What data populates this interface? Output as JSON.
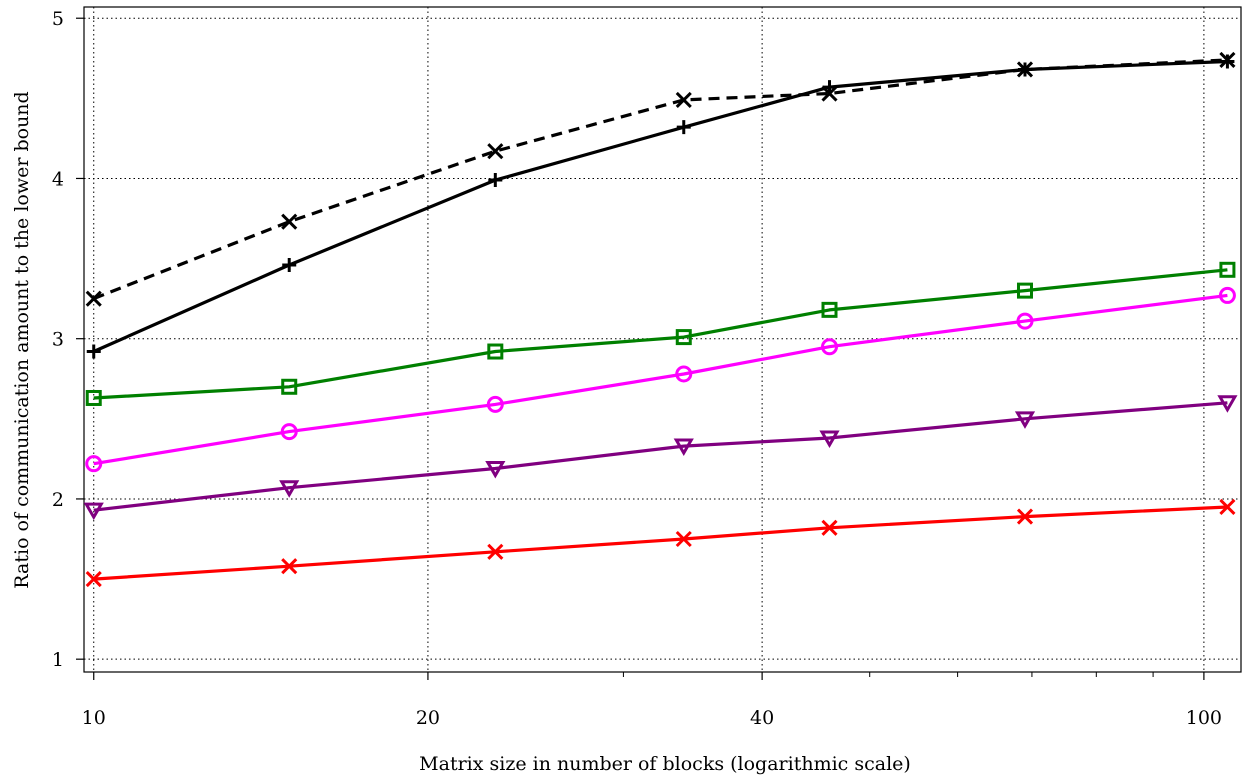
{
  "chart_data": {
    "type": "line",
    "xlabel": "Matrix size in number of blocks (logarithmic scale)",
    "ylabel": "Ratio of communication amount to the lower bound",
    "x_scale": "log",
    "xlim": [
      9.8,
      108
    ],
    "ylim": [
      0.92,
      5.07
    ],
    "x_ticks": [
      10,
      20,
      40,
      100
    ],
    "x_tick_labels": [
      "10",
      "20",
      "40",
      "100"
    ],
    "x_minor_ticks": [
      30,
      50,
      60,
      70,
      80,
      90
    ],
    "y_ticks": [
      1,
      2,
      3,
      4,
      5
    ],
    "y_tick_labels": [
      "1",
      "2",
      "3",
      "4",
      "5"
    ],
    "grid": true,
    "x": [
      10,
      15,
      23,
      34,
      46,
      69,
      105
    ],
    "series": [
      {
        "color": "#000000",
        "marker": "x",
        "dash": true,
        "values": [
          3.25,
          3.73,
          4.17,
          4.49,
          4.53,
          4.68,
          4.74
        ]
      },
      {
        "color": "#000000",
        "marker": "+",
        "dash": false,
        "values": [
          2.92,
          3.46,
          3.99,
          4.32,
          4.57,
          4.68,
          4.73
        ]
      },
      {
        "color": "#008000",
        "marker": "square",
        "dash": false,
        "values": [
          2.63,
          2.7,
          2.92,
          3.01,
          3.18,
          3.3,
          3.43
        ]
      },
      {
        "color": "#ff00ff",
        "marker": "circle",
        "dash": false,
        "values": [
          2.22,
          2.42,
          2.59,
          2.78,
          2.95,
          3.11,
          3.27
        ]
      },
      {
        "color": "#800080",
        "marker": "triangle-down",
        "dash": false,
        "values": [
          1.93,
          2.07,
          2.19,
          2.33,
          2.38,
          2.5,
          2.6
        ]
      },
      {
        "color": "#ff0000",
        "marker": "x",
        "dash": false,
        "values": [
          1.5,
          1.58,
          1.67,
          1.75,
          1.82,
          1.89,
          1.95
        ]
      }
    ]
  }
}
